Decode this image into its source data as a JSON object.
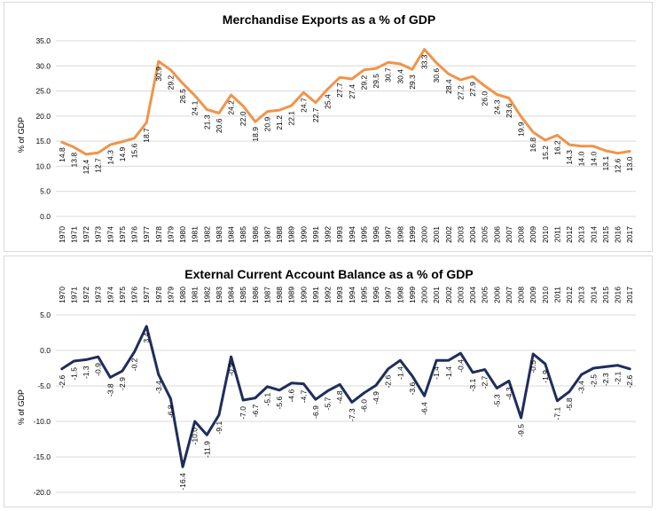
{
  "chart_data": [
    {
      "type": "line",
      "title": "Merchandise Exports as a % of GDP",
      "xlabel": "",
      "ylabel": "% of GDP",
      "ylim": [
        0,
        35
      ],
      "yticks": [
        "0.0",
        "5.0",
        "10.0",
        "15.0",
        "20.0",
        "25.0",
        "30.0",
        "35.0"
      ],
      "grid": true,
      "color": "#f0944a",
      "categories": [
        "1970",
        "1971",
        "1972",
        "1973",
        "1974",
        "1975",
        "1976",
        "1977",
        "1978",
        "1979",
        "1980",
        "1981",
        "1982",
        "1983",
        "1984",
        "1985",
        "1986",
        "1987",
        "1988",
        "1989",
        "1990",
        "1991",
        "1992",
        "1993",
        "1994",
        "1995",
        "1996",
        "1997",
        "1998",
        "1999",
        "2000",
        "2001",
        "2002",
        "2003",
        "2004",
        "2005",
        "2006",
        "2007",
        "2008",
        "2009",
        "2010",
        "2011",
        "2012",
        "2013",
        "2014",
        "2015",
        "2016",
        "2017"
      ],
      "values": [
        14.8,
        13.8,
        12.4,
        12.7,
        14.3,
        14.9,
        15.6,
        18.7,
        30.9,
        29.2,
        26.5,
        24.1,
        21.3,
        20.6,
        24.2,
        22.0,
        18.9,
        20.9,
        21.2,
        22.1,
        24.7,
        22.7,
        25.4,
        27.7,
        27.4,
        29.2,
        29.5,
        30.7,
        30.4,
        29.3,
        33.3,
        30.6,
        28.4,
        27.2,
        27.9,
        26.0,
        24.3,
        23.6,
        19.9,
        16.8,
        15.2,
        16.2,
        14.3,
        14.0,
        14.0,
        13.1,
        12.6,
        13.0
      ],
      "data_labels": [
        "14.8",
        "13.8",
        "12.4",
        "12.7",
        "14.3",
        "14.9",
        "15.6",
        "18.7",
        "30.9",
        "29.2",
        "26.5",
        "24.1",
        "21.3",
        "20.6",
        "24.2",
        "22.0",
        "18.9",
        "20.9",
        "21.2",
        "22.1",
        "24.7",
        "22.7",
        "25.4",
        "27.7",
        "27.4",
        "29.2",
        "29.5",
        "30.7",
        "30.4",
        "29.3",
        "33.3",
        "30.6",
        "28.4",
        "27.2",
        "27.9",
        "26.0",
        "24.3",
        "23.6",
        "19.9",
        "16.8",
        "15.2",
        "16.2",
        "14.3",
        "14.0",
        "14.0",
        "13.1",
        "12.6",
        "13.0"
      ]
    },
    {
      "type": "line",
      "title": "External Current Account Balance as a % of GDP",
      "xlabel": "",
      "ylabel": "% of GDP",
      "ylim": [
        -20,
        5
      ],
      "yticks": [
        "-20.0",
        "-15.0",
        "-10.0",
        "-5.0",
        "0.0",
        "5.0"
      ],
      "grid": true,
      "color": "#1f2d5c",
      "categories": [
        "1970",
        "1971",
        "1972",
        "1973",
        "1974",
        "1975",
        "1976",
        "1977",
        "1978",
        "1979",
        "1980",
        "1981",
        "1982",
        "1983",
        "1984",
        "1985",
        "1986",
        "1987",
        "1988",
        "1989",
        "1990",
        "1991",
        "1992",
        "1993",
        "1994",
        "1995",
        "1996",
        "1997",
        "1998",
        "1999",
        "2000",
        "2001",
        "2002",
        "2003",
        "2004",
        "2005",
        "2006",
        "2007",
        "2008",
        "2009",
        "2010",
        "2011",
        "2012",
        "2013",
        "2014",
        "2015",
        "2016",
        "2017"
      ],
      "values": [
        -2.6,
        -1.5,
        -1.3,
        -0.9,
        -3.8,
        -2.9,
        -0.2,
        3.4,
        -3.4,
        -6.8,
        -16.4,
        -10.0,
        -11.9,
        -9.1,
        -0.9,
        -7.0,
        -6.7,
        -5.1,
        -5.6,
        -4.6,
        -4.7,
        -6.9,
        -5.7,
        -4.8,
        -7.3,
        -6.0,
        -4.9,
        -2.6,
        -1.4,
        -3.6,
        -6.4,
        -1.4,
        -1.4,
        -0.4,
        -3.1,
        -2.7,
        -5.3,
        -4.3,
        -9.5,
        -0.5,
        -1.9,
        -7.1,
        -5.8,
        -3.4,
        -2.5,
        -2.3,
        -2.1,
        -2.6
      ],
      "data_labels": [
        "-2.6",
        "-1.5",
        "-1.3",
        "-0.9",
        "-3.8",
        "-2.9",
        "-0.2",
        "3.4",
        "-3.4",
        "-6.8",
        "-16.4",
        "-10.0",
        "-11.9",
        "-9.1",
        "-0.9",
        "-7.0",
        "-6.7",
        "-5.1",
        "-5.6",
        "-4.6",
        "-4.7",
        "-6.9",
        "-5.7",
        "-4.8",
        "-7.3",
        "-6.0",
        "-4.9",
        "-2.6",
        "-1.4",
        "-3.6",
        "-6.4",
        "-1.4",
        "-1.4",
        "-0.4",
        "-3.1",
        "-2.7",
        "-5.3",
        "-4.3",
        "-9.5",
        "-0.5",
        "-1.9",
        "-7.1",
        "-5.8",
        "-3.4",
        "-2.5",
        "-2.3",
        "-2.1",
        "-2.6"
      ]
    }
  ]
}
